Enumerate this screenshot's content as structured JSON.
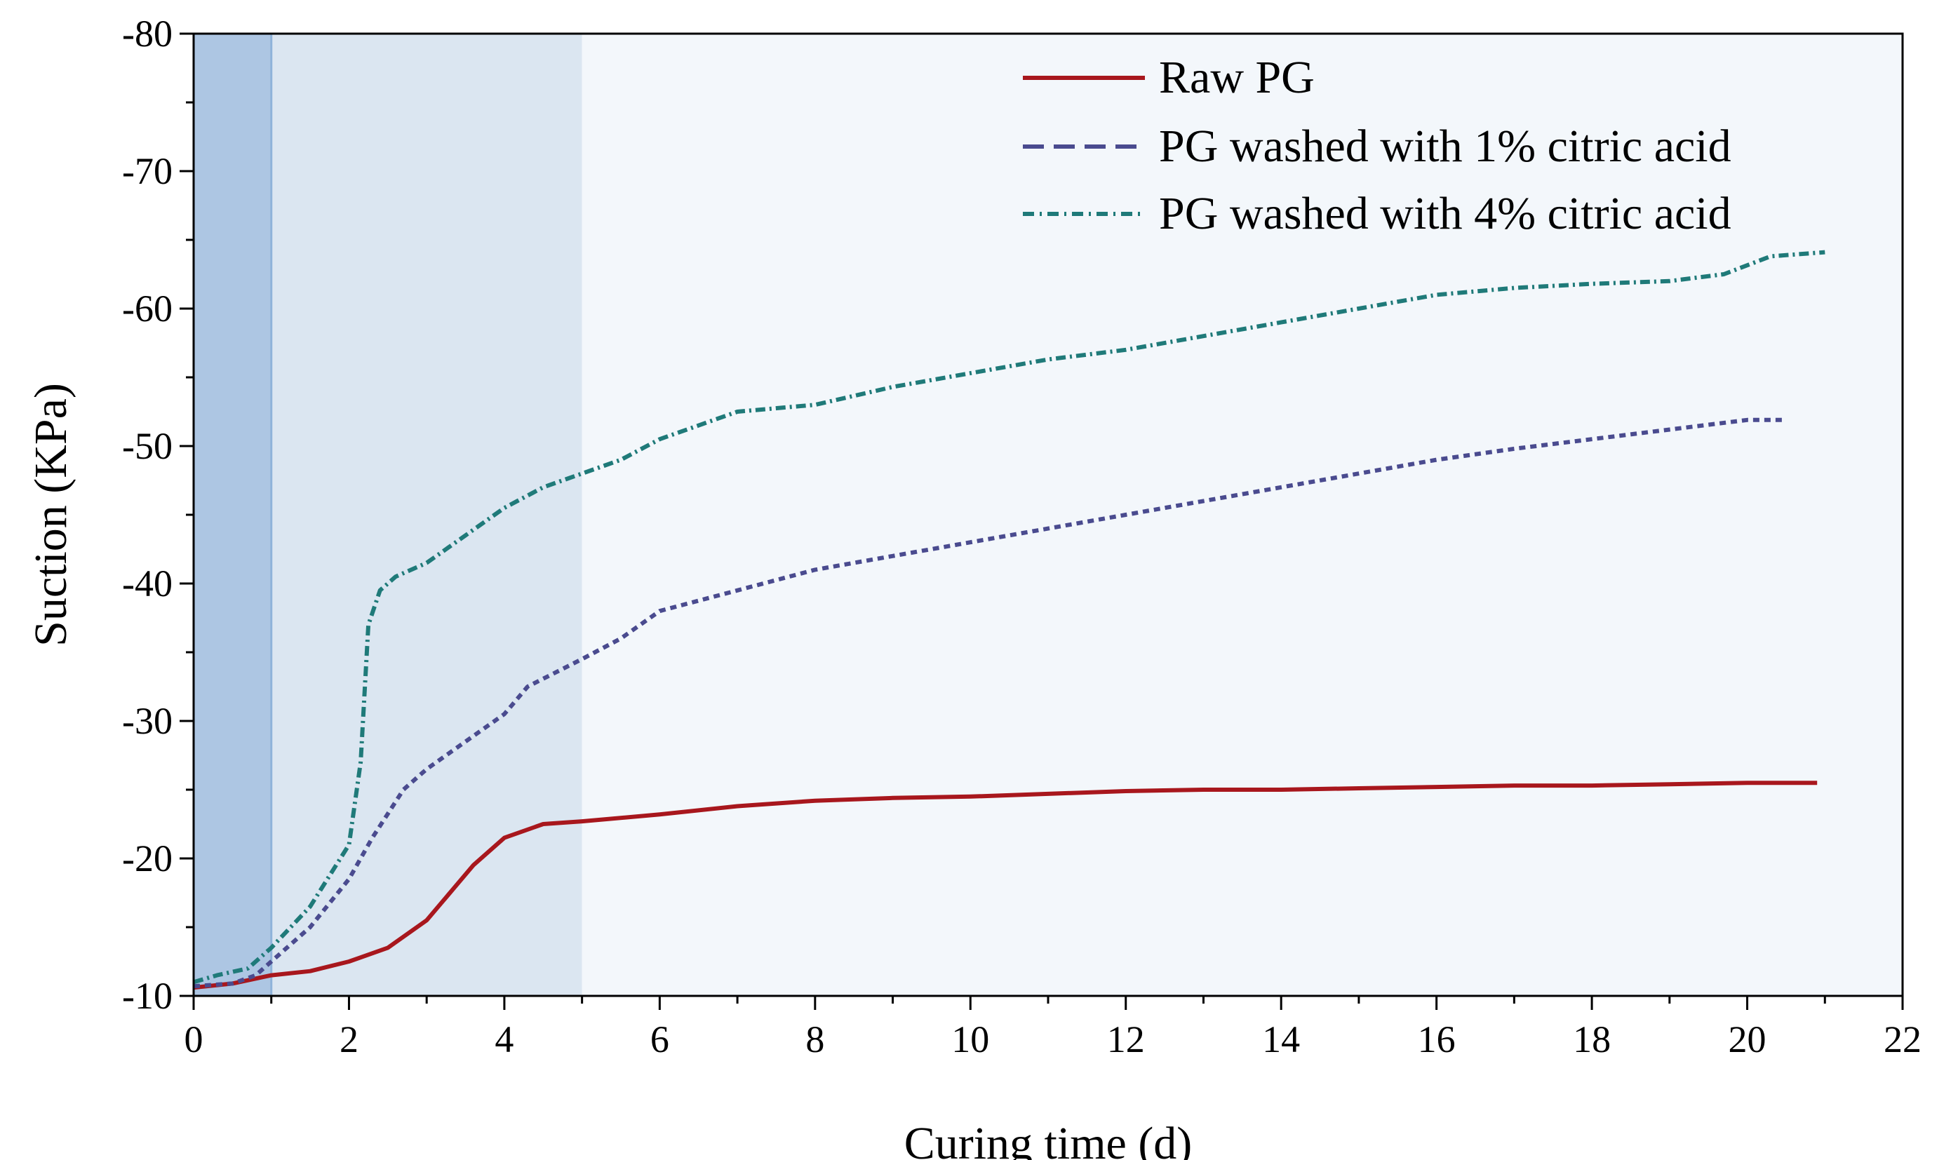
{
  "chart_data": {
    "type": "line",
    "xlabel": "Curing time (d)",
    "ylabel": "Suction (KPa)",
    "xlim": [
      0,
      22
    ],
    "ylim": [
      -10,
      -80
    ],
    "y_axis_inverted": true,
    "x_ticks": [
      "0",
      "2",
      "4",
      "6",
      "8",
      "10",
      "12",
      "14",
      "16",
      "18",
      "20",
      "22"
    ],
    "y_ticks": [
      "-10",
      "-20",
      "-30",
      "-40",
      "-50",
      "-60",
      "-70",
      "-80"
    ],
    "legend_position": "top-right",
    "grid": false,
    "shaded_regions": [
      {
        "x_from": 0,
        "x_to": 1,
        "color": "#adc6e3"
      },
      {
        "x_from": 1,
        "x_to": 5,
        "color": "#dbe6f1"
      },
      {
        "x_from": 5,
        "x_to": 22,
        "color": "#f3f7fb"
      }
    ],
    "series": [
      {
        "name": "Raw PG",
        "color": "#a8171d",
        "style": "solid",
        "x": [
          0,
          0.5,
          1,
          1.5,
          2,
          2.5,
          3,
          3.3,
          3.6,
          4,
          4.5,
          5,
          6,
          7,
          8,
          9,
          10,
          11,
          12,
          13,
          14,
          15,
          16,
          17,
          18,
          19,
          20,
          20.9
        ],
        "y": [
          -10.6,
          -10.9,
          -11.5,
          -11.8,
          -12.5,
          -13.5,
          -15.5,
          -17.5,
          -19.5,
          -21.5,
          -22.5,
          -22.7,
          -23.2,
          -23.8,
          -24.2,
          -24.4,
          -24.5,
          -24.7,
          -24.9,
          -25,
          -25,
          -25.1,
          -25.2,
          -25.3,
          -25.3,
          -25.4,
          -25.5,
          -25.5
        ]
      },
      {
        "name": "PG washed with 1% citric acid",
        "color": "#4a4b8f",
        "style": "dash",
        "x": [
          0,
          0.5,
          0.8,
          1,
          1.5,
          2,
          2.3,
          2.7,
          3,
          3.5,
          4,
          4.3,
          5,
          5.5,
          6,
          7,
          8,
          9,
          10,
          11,
          12,
          13,
          14,
          15,
          16,
          17,
          18,
          19,
          20,
          20.5
        ],
        "y": [
          -10.7,
          -10.9,
          -11.5,
          -12.5,
          -15,
          -18.5,
          -21.5,
          -25,
          -26.5,
          -28.5,
          -30.5,
          -32.5,
          -34.5,
          -36,
          -38,
          -39.5,
          -41,
          -42,
          -43,
          -44,
          -45,
          -46,
          -47,
          -48,
          -49,
          -49.8,
          -50.5,
          -51.2,
          -51.9,
          -51.9
        ]
      },
      {
        "name": "PG washed with 4% citric acid",
        "color": "#1f7a79",
        "style": "dashdot",
        "x": [
          0,
          0.3,
          0.7,
          1,
          1.5,
          2,
          2.15,
          2.25,
          2.4,
          2.6,
          3,
          3.5,
          4,
          4.5,
          5,
          5.5,
          6,
          7,
          8,
          9,
          10,
          11,
          12,
          13,
          14,
          15,
          16,
          17,
          18,
          19,
          19.7,
          20.3,
          21
        ],
        "y": [
          -11,
          -11.5,
          -12,
          -13.5,
          -16.5,
          -21,
          -27,
          -37,
          -39.5,
          -40.5,
          -41.5,
          -43.5,
          -45.5,
          -47,
          -48,
          -49,
          -50.5,
          -52.5,
          -53,
          -54.3,
          -55.3,
          -56.3,
          -57,
          -58,
          -59,
          -60,
          -61,
          -61.5,
          -61.8,
          -62,
          -62.5,
          -63.8,
          -64.1
        ]
      }
    ]
  }
}
